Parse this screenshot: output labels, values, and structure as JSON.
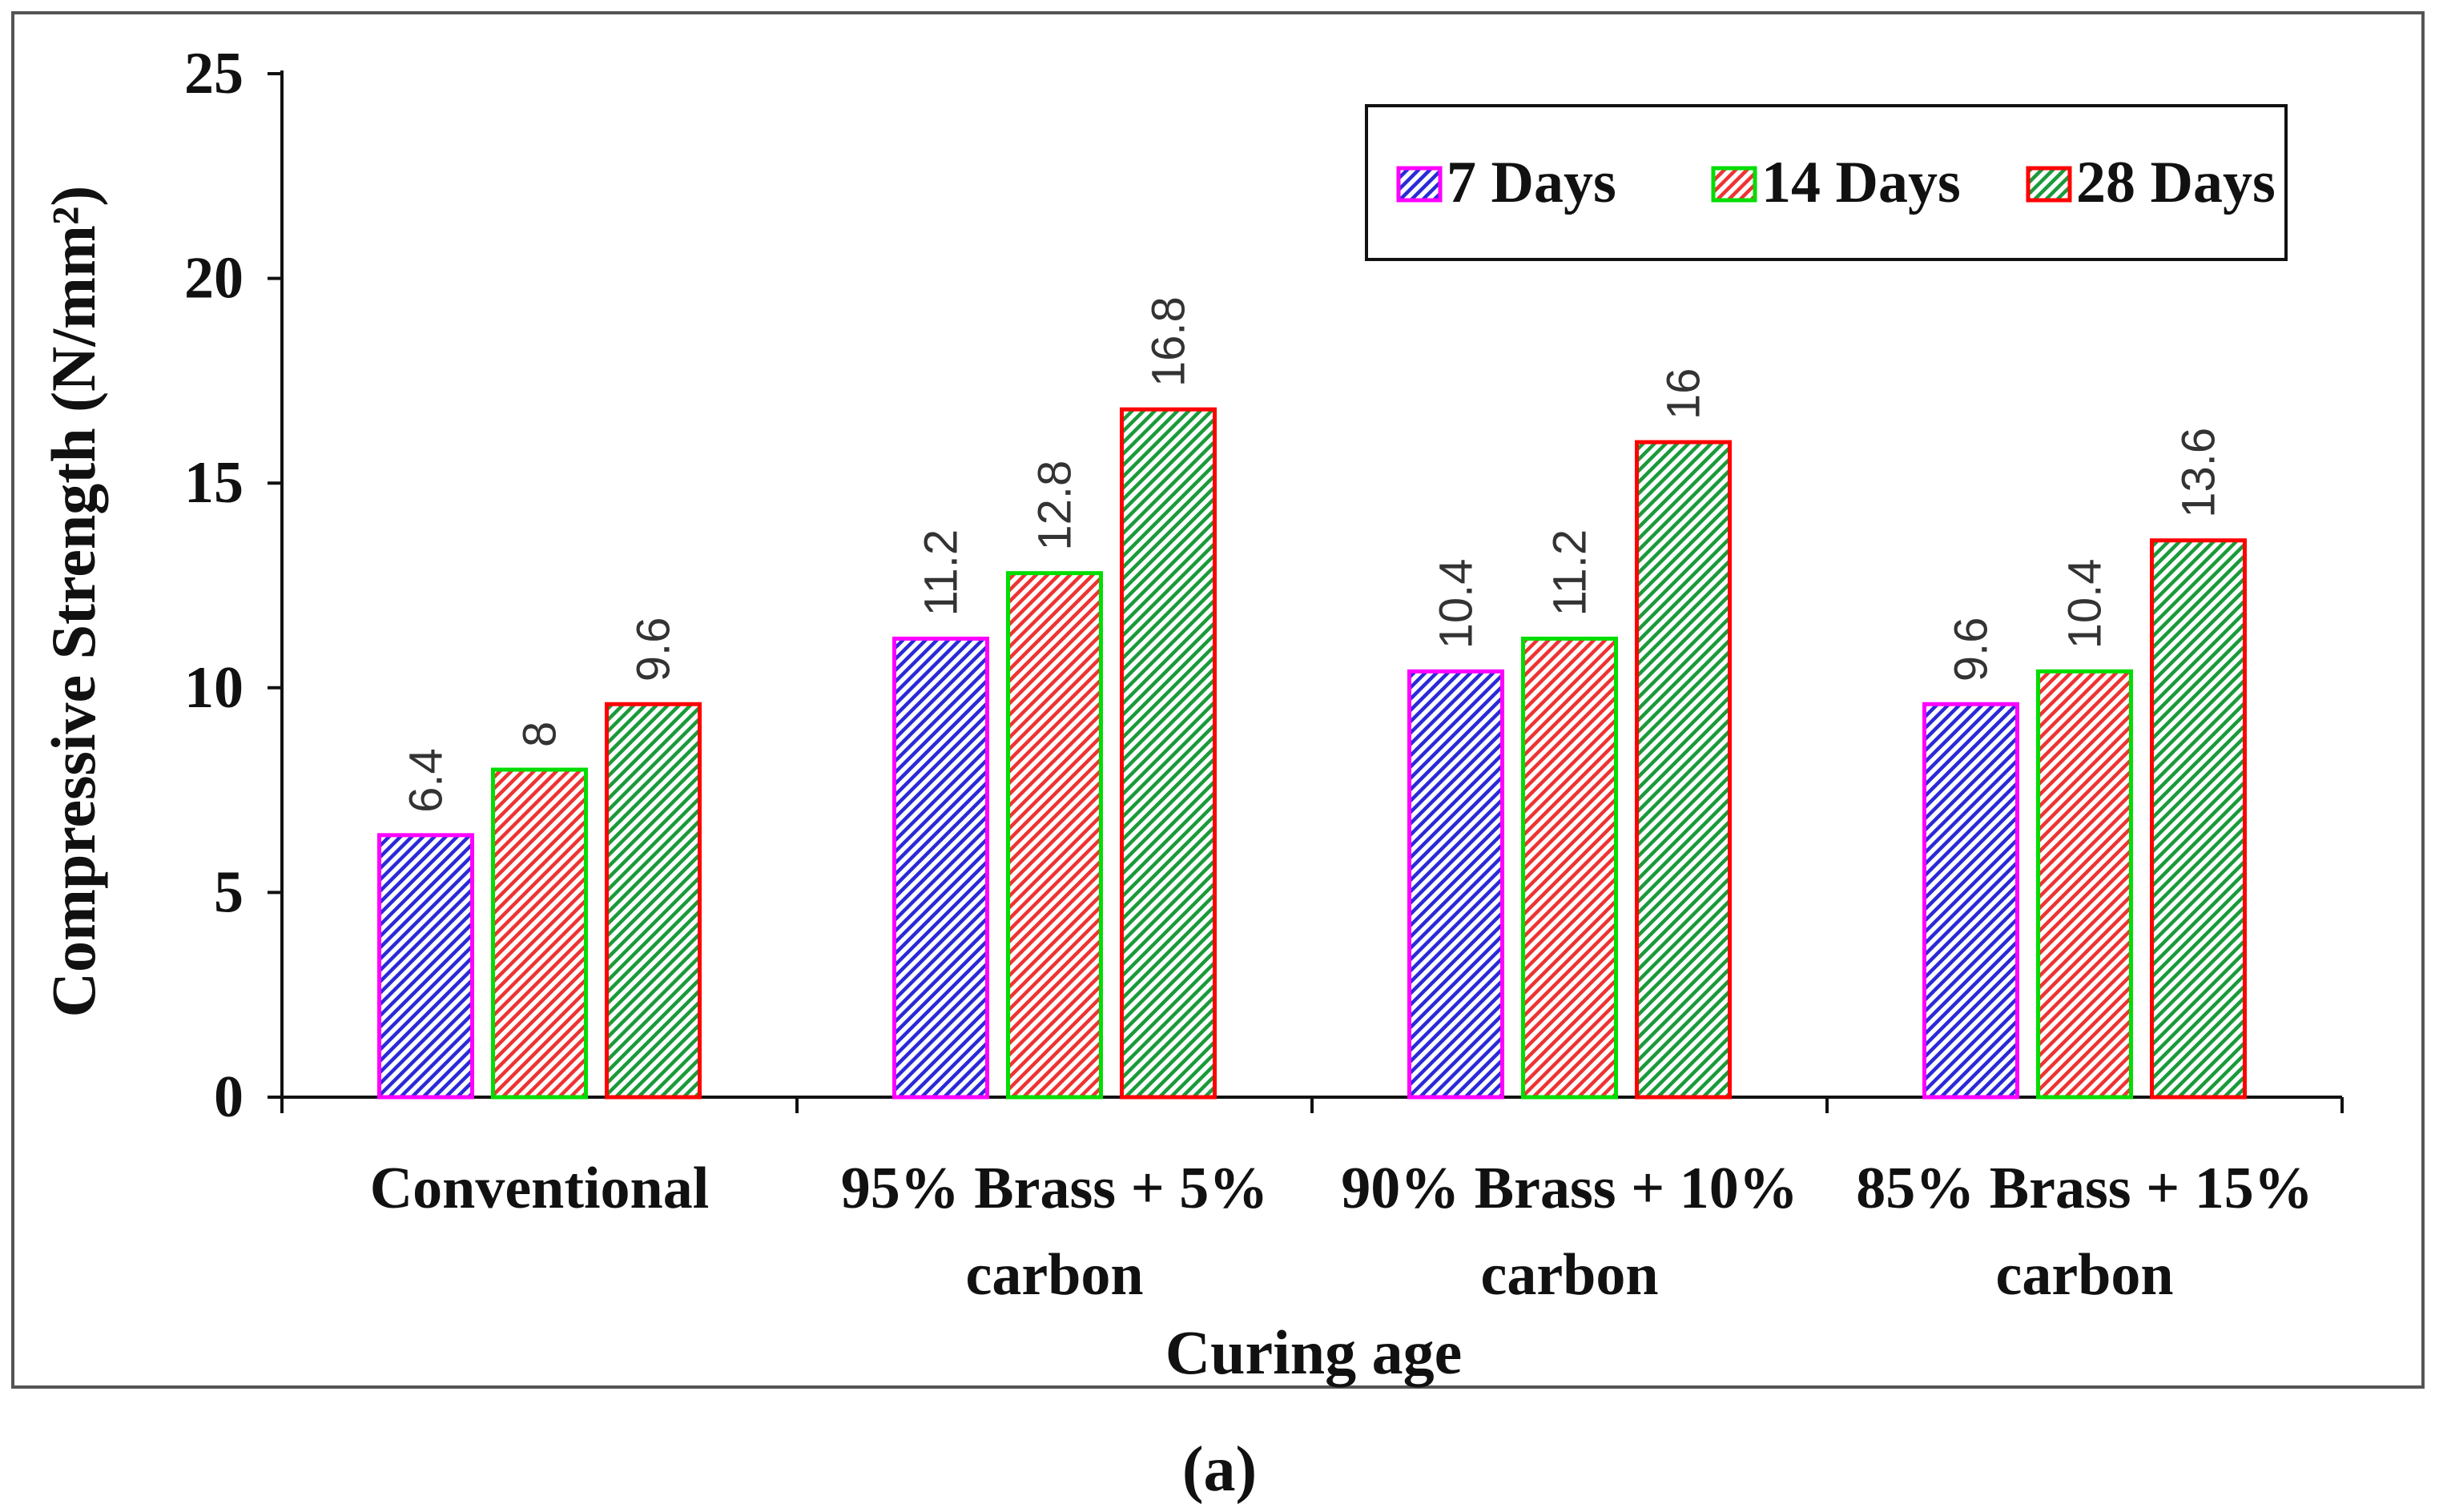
{
  "chart_data": {
    "type": "bar",
    "title": "",
    "xlabel": "Curing age",
    "ylabel": "Compressive Strength (N/mm²)",
    "ylim": [
      0,
      25
    ],
    "yticks": [
      "0",
      "5",
      "10",
      "15",
      "20",
      "25"
    ],
    "ytick_values": [
      0,
      5,
      10,
      15,
      20,
      25
    ],
    "categories": [
      [
        "Conventional"
      ],
      [
        "95% Brass + 5%",
        "carbon"
      ],
      [
        "90% Brass + 10%",
        "carbon"
      ],
      [
        "85% Brass + 15%",
        "carbon"
      ]
    ],
    "series": [
      {
        "name": "7 Days",
        "values": [
          6.4,
          11.2,
          10.4,
          9.6
        ],
        "value_labels": [
          "6.4",
          "11.2",
          "10.4",
          "9.6"
        ],
        "border_color": "#ff00ff",
        "hatch_color": "#2a2ad8"
      },
      {
        "name": "14 Days",
        "values": [
          8,
          12.8,
          11.2,
          10.4
        ],
        "value_labels": [
          "8",
          "12.8",
          "11.2",
          "10.4"
        ],
        "border_color": "#00dd00",
        "hatch_color": "#ee3333"
      },
      {
        "name": "28 Days",
        "values": [
          9.6,
          16.8,
          16,
          13.6
        ],
        "value_labels": [
          "9.6",
          "16.8",
          "16",
          "13.6"
        ],
        "border_color": "#ff0000",
        "hatch_color": "#1a9a3a"
      }
    ],
    "legend_position": "top-right",
    "grid": false
  },
  "caption": "(a)"
}
